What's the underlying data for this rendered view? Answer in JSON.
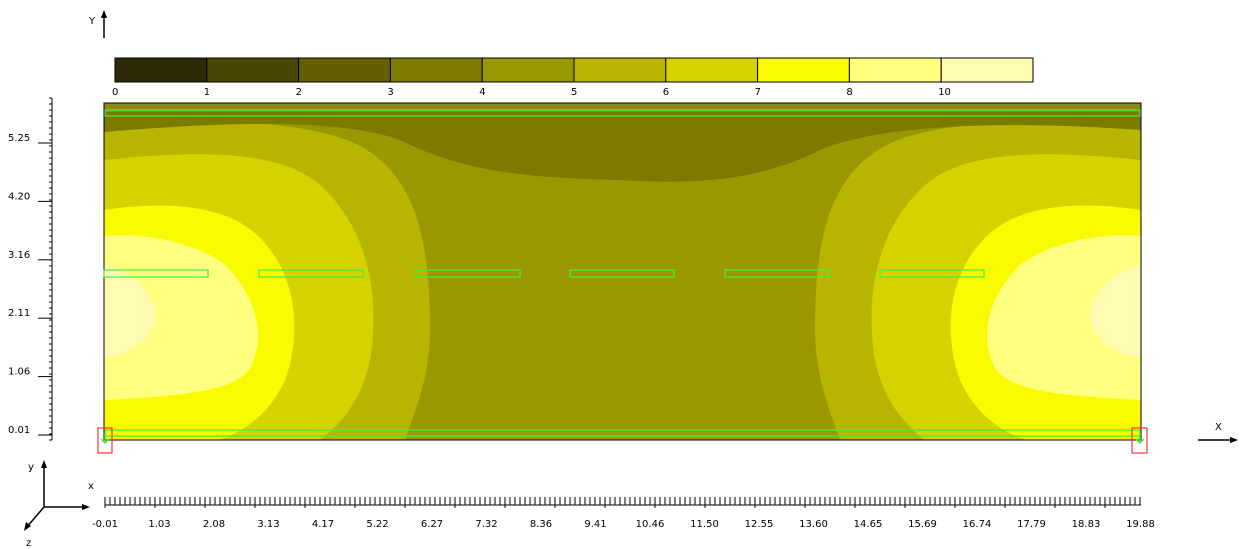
{
  "chart_data": {
    "type": "heatmap",
    "axes": {
      "y_axis_label": "Y",
      "x_axis_label": "X",
      "triad_labels": {
        "y": "y",
        "x": "x",
        "z": "z"
      }
    },
    "x_range": [
      -0.01,
      19.88
    ],
    "y_range": [
      0.01,
      6.3
    ],
    "x_tick_labels": [
      "-0.01",
      "1.03",
      "2.08",
      "3.13",
      "4.17",
      "5.22",
      "6.27",
      "7.32",
      "8.36",
      "9.41",
      "10.46",
      "11.50",
      "12.55",
      "13.60",
      "14.65",
      "15.69",
      "16.74",
      "17.79",
      "18.83",
      "19.88"
    ],
    "y_tick_labels": [
      "0.01",
      "1.06",
      "2.11",
      "3.16",
      "4.20",
      "5.25"
    ],
    "colorbar": {
      "labels": [
        "0",
        "1",
        "2",
        "3",
        "4",
        "5",
        "6",
        "7",
        "8",
        "10"
      ],
      "colors": [
        "#2e2a06",
        "#4a4606",
        "#645f00",
        "#7d7a00",
        "#9a9800",
        "#b8b500",
        "#d6d200",
        "#fbfb00",
        "#ffff80",
        "#fffbb0"
      ]
    },
    "field_colors": [
      "#8e8a14",
      "#7d7a00",
      "#9a9800",
      "#b8b500",
      "#d6d200",
      "#fbfb00",
      "#ffff80",
      "#fffbb0"
    ],
    "overlay_color": "#44ee44",
    "support_color": "#ff3333"
  }
}
